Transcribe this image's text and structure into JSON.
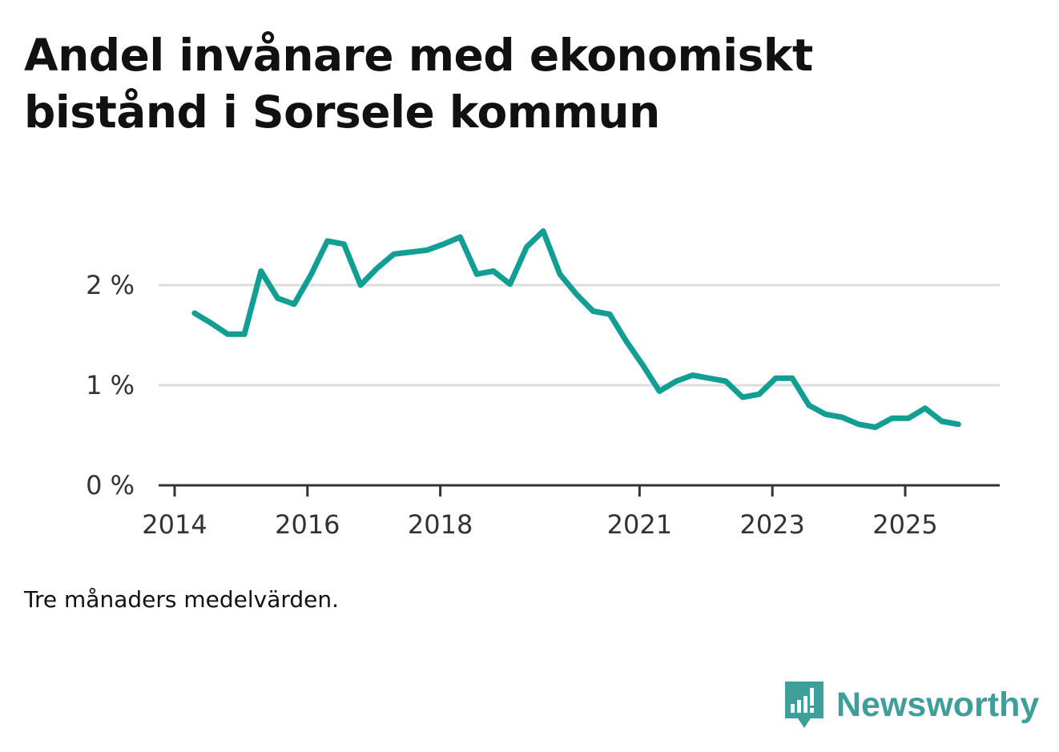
{
  "title": "Andel invånare med ekonomiskt bistånd i Sorsele kommun",
  "footnote": "Tre månaders medelvärden.",
  "brand": {
    "name": "Newsworthy",
    "icon": "newsworthy-logo-icon",
    "color": "#3d9e9a"
  },
  "chart_data": {
    "type": "line",
    "title": "Andel invånare med ekonomiskt bistånd i Sorsele kommun",
    "xlabel": "",
    "ylabel": "",
    "ylim": [
      0,
      2.6
    ],
    "xlim": [
      2014.0,
      2026.4
    ],
    "grid": true,
    "line_color": "#129e93",
    "y_ticks": [
      {
        "value": 0,
        "label": "0 %"
      },
      {
        "value": 1,
        "label": "1 %"
      },
      {
        "value": 2,
        "label": "2 %"
      }
    ],
    "x_ticks": [
      {
        "value": 2014,
        "label": "2014"
      },
      {
        "value": 2016,
        "label": "2016"
      },
      {
        "value": 2018,
        "label": "2018"
      },
      {
        "value": 2021,
        "label": "2021"
      },
      {
        "value": 2023,
        "label": "2023"
      },
      {
        "value": 2025,
        "label": "2025"
      }
    ],
    "series": [
      {
        "name": "Andel invånare med ekonomiskt bistånd",
        "x": [
          2014.3,
          2014.55,
          2014.8,
          2015.05,
          2015.3,
          2015.55,
          2015.8,
          2016.05,
          2016.3,
          2016.55,
          2016.8,
          2017.05,
          2017.3,
          2017.55,
          2017.8,
          2018.05,
          2018.3,
          2018.55,
          2018.8,
          2019.05,
          2019.3,
          2019.55,
          2019.8,
          2020.05,
          2020.3,
          2020.55,
          2020.8,
          2021.05,
          2021.3,
          2021.55,
          2021.8,
          2022.05,
          2022.3,
          2022.55,
          2022.8,
          2023.05,
          2023.3,
          2023.55,
          2023.8,
          2024.05,
          2024.3,
          2024.55,
          2024.8,
          2025.05,
          2025.3,
          2025.55,
          2025.8
        ],
        "values": [
          1.72,
          1.62,
          1.51,
          1.51,
          2.14,
          1.87,
          1.81,
          2.1,
          2.44,
          2.41,
          2.0,
          2.17,
          2.31,
          2.33,
          2.35,
          2.41,
          2.48,
          2.11,
          2.14,
          2.01,
          2.38,
          2.54,
          2.11,
          1.91,
          1.74,
          1.71,
          1.44,
          1.2,
          0.94,
          1.04,
          1.1,
          1.07,
          1.04,
          0.88,
          0.91,
          1.07,
          1.07,
          0.8,
          0.71,
          0.68,
          0.61,
          0.58,
          0.67,
          0.67,
          0.77,
          0.64,
          0.61
        ]
      }
    ]
  }
}
